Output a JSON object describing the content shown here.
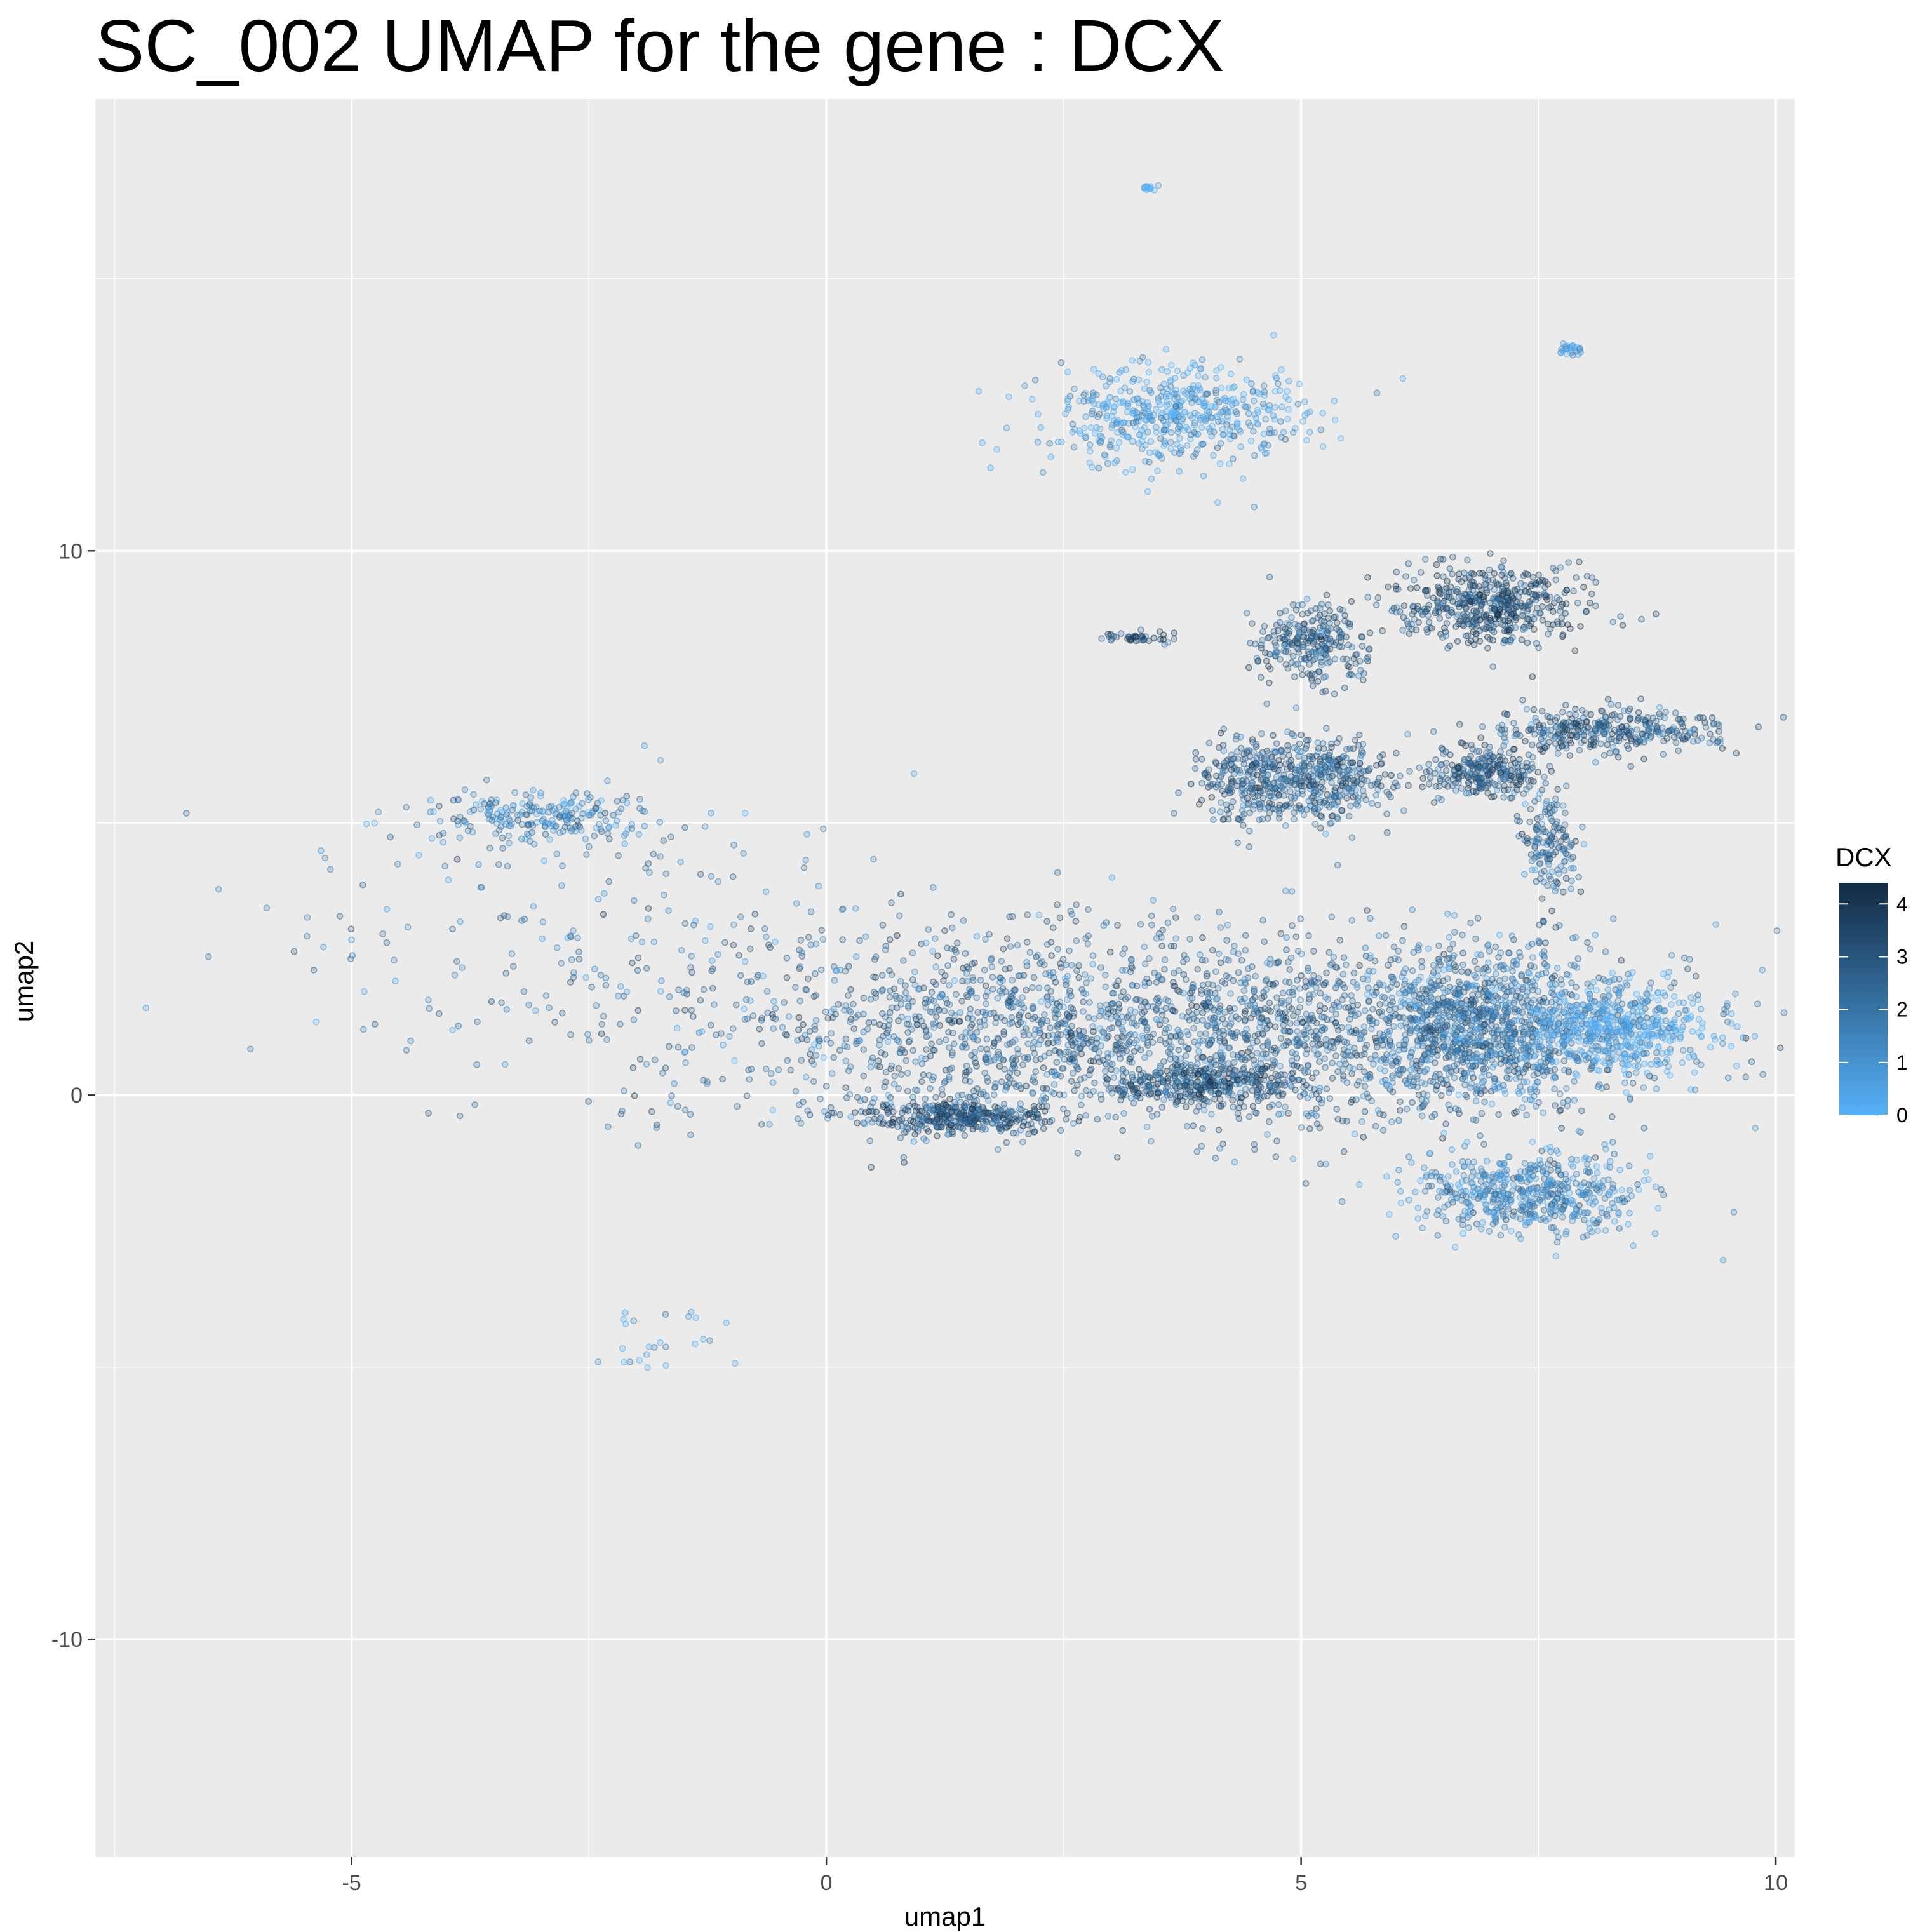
{
  "chart_data": {
    "type": "scatter",
    "title": "SC_002  UMAP for the gene :  DCX",
    "xlabel": "umap1",
    "ylabel": "umap2",
    "xlim": [
      -7.7,
      10.2
    ],
    "ylim": [
      -14.0,
      18.3
    ],
    "x_ticks": [
      -5,
      0,
      5,
      10
    ],
    "x_tick_labels": [
      "-5",
      "0",
      "5",
      "10"
    ],
    "y_ticks": [
      -10,
      0,
      10
    ],
    "y_tick_labels": [
      "-10",
      "0",
      "10"
    ],
    "grid": true,
    "background_color": "#ebebeb",
    "legend": {
      "title": "DCX",
      "placement": "right",
      "ticks": [
        0,
        1,
        2,
        3,
        4
      ],
      "tick_labels": [
        "0",
        "1",
        "2",
        "3",
        "4"
      ],
      "range": [
        0,
        4.4
      ],
      "low_color": "#56b1f7",
      "high_color": "#132b43"
    },
    "point_alpha": 0.4,
    "clusters": [
      {
        "name": "central band",
        "center": [
          3.6,
          1.2
        ],
        "spread": [
          2.6,
          0.9
        ],
        "n": 2400,
        "dcx_mean": 2.4
      },
      {
        "name": "lower arc",
        "center": [
          1.4,
          -0.4
        ],
        "spread": [
          0.5,
          0.15
        ],
        "n": 350,
        "dcx_mean": 3.0
      },
      {
        "name": "mid arc",
        "center": [
          4.0,
          0.2
        ],
        "spread": [
          0.5,
          0.2
        ],
        "n": 300,
        "dcx_mean": 3.0
      },
      {
        "name": "right branch",
        "center": [
          6.9,
          1.3
        ],
        "spread": [
          0.6,
          0.7
        ],
        "n": 900,
        "dcx_mean": 1.9
      },
      {
        "name": "right light tip",
        "center": [
          8.3,
          1.2
        ],
        "spread": [
          0.5,
          0.4
        ],
        "n": 500,
        "dcx_mean": 0.4
      },
      {
        "name": "lower right tail",
        "center": [
          7.4,
          -1.8
        ],
        "spread": [
          0.6,
          0.4
        ],
        "n": 550,
        "dcx_mean": 1.3
      },
      {
        "name": "upper light cluster",
        "center": [
          3.7,
          12.5
        ],
        "spread": [
          0.7,
          0.45
        ],
        "n": 520,
        "dcx_mean": 0.6
      },
      {
        "name": "cluster A",
        "center": [
          4.5,
          5.8
        ],
        "spread": [
          0.3,
          0.45
        ],
        "n": 300,
        "dcx_mean": 2.7
      },
      {
        "name": "cluster B",
        "center": [
          5.3,
          5.8
        ],
        "spread": [
          0.35,
          0.4
        ],
        "n": 300,
        "dcx_mean": 2.6
      },
      {
        "name": "cluster C",
        "center": [
          5.1,
          8.3
        ],
        "spread": [
          0.3,
          0.35
        ],
        "n": 260,
        "dcx_mean": 2.8
      },
      {
        "name": "cluster D",
        "center": [
          7.0,
          9.0
        ],
        "spread": [
          0.5,
          0.35
        ],
        "n": 500,
        "dcx_mean": 3.2
      },
      {
        "name": "cluster E",
        "center": [
          8.2,
          6.7
        ],
        "spread": [
          0.6,
          0.2
        ],
        "n": 350,
        "dcx_mean": 2.8
      },
      {
        "name": "cluster F",
        "center": [
          6.9,
          5.9
        ],
        "spread": [
          0.3,
          0.2
        ],
        "n": 250,
        "dcx_mean": 2.9
      },
      {
        "name": "cluster G",
        "center": [
          7.6,
          4.6
        ],
        "spread": [
          0.15,
          0.5
        ],
        "n": 150,
        "dcx_mean": 2.5
      },
      {
        "name": "left streak",
        "center": [
          -3.0,
          5.1
        ],
        "spread": [
          0.6,
          0.2
        ],
        "n": 220,
        "dcx_mean": 1.6
      },
      {
        "name": "left scatter",
        "center": [
          -2.5,
          3.2
        ],
        "spread": [
          2.3,
          1.3
        ],
        "n": 200,
        "dcx_mean": 1.6
      },
      {
        "name": "small tight",
        "center": [
          3.3,
          8.4
        ],
        "spread": [
          0.2,
          0.05
        ],
        "n": 40,
        "dcx_mean": 3.2
      },
      {
        "name": "top dot",
        "center": [
          3.4,
          16.7
        ],
        "spread": [
          0.05,
          0.05
        ],
        "n": 12,
        "dcx_mean": 0.4
      },
      {
        "name": "upper right dot",
        "center": [
          7.8,
          13.7
        ],
        "spread": [
          0.07,
          0.05
        ],
        "n": 25,
        "dcx_mean": 0.5
      },
      {
        "name": "lower island",
        "center": [
          -1.7,
          -4.4
        ],
        "spread": [
          0.35,
          0.3
        ],
        "n": 25,
        "dcx_mean": 0.7
      }
    ]
  }
}
